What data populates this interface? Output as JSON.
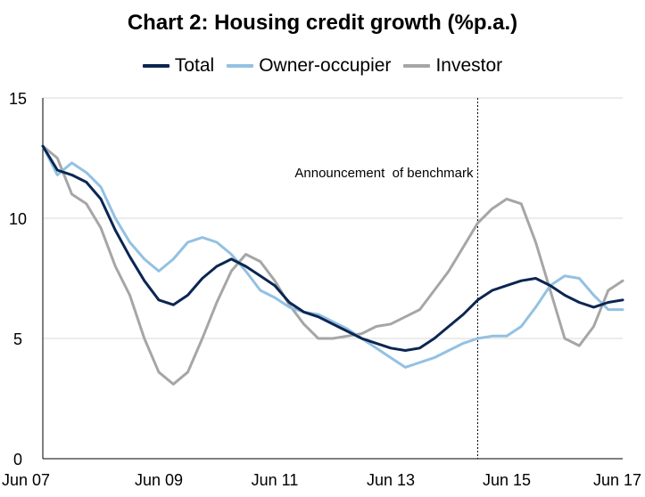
{
  "chart_data": {
    "type": "line",
    "title": "Chart 2: Housing credit growth (%p.a.)",
    "xlabel": "",
    "ylabel": "",
    "x_range": [
      "2007-06",
      "2017-06"
    ],
    "ylim": [
      0,
      15
    ],
    "y_ticks": [
      0,
      5,
      10,
      15
    ],
    "x_ticks": [
      {
        "date": "2007-06",
        "label": "Jun 07"
      },
      {
        "date": "2009-06",
        "label": "Jun 09"
      },
      {
        "date": "2011-06",
        "label": "Jun 11"
      },
      {
        "date": "2013-06",
        "label": "Jun 13"
      },
      {
        "date": "2015-06",
        "label": "Jun 15"
      },
      {
        "date": "2017-06",
        "label": "Jun 17"
      }
    ],
    "grid": "horizontal",
    "legend_position": "top-center",
    "annotation": {
      "date": "2014-12",
      "label": "Announcement  of benchmark",
      "style": "dotted-vertical-line"
    },
    "series": [
      {
        "name": "Total",
        "color": "#0b2653",
        "points": [
          [
            "2007-06",
            13.0
          ],
          [
            "2007-09",
            12.0
          ],
          [
            "2007-12",
            11.8
          ],
          [
            "2008-03",
            11.5
          ],
          [
            "2008-06",
            10.8
          ],
          [
            "2008-09",
            9.5
          ],
          [
            "2008-12",
            8.4
          ],
          [
            "2009-03",
            7.4
          ],
          [
            "2009-06",
            6.6
          ],
          [
            "2009-09",
            6.4
          ],
          [
            "2009-12",
            6.8
          ],
          [
            "2010-03",
            7.5
          ],
          [
            "2010-06",
            8.0
          ],
          [
            "2010-09",
            8.3
          ],
          [
            "2010-12",
            8.0
          ],
          [
            "2011-03",
            7.6
          ],
          [
            "2011-06",
            7.2
          ],
          [
            "2011-09",
            6.5
          ],
          [
            "2011-12",
            6.1
          ],
          [
            "2012-03",
            5.9
          ],
          [
            "2012-06",
            5.6
          ],
          [
            "2012-09",
            5.3
          ],
          [
            "2012-12",
            5.0
          ],
          [
            "2013-03",
            4.8
          ],
          [
            "2013-06",
            4.6
          ],
          [
            "2013-09",
            4.5
          ],
          [
            "2013-12",
            4.6
          ],
          [
            "2014-03",
            5.0
          ],
          [
            "2014-06",
            5.5
          ],
          [
            "2014-09",
            6.0
          ],
          [
            "2014-12",
            6.6
          ],
          [
            "2015-03",
            7.0
          ],
          [
            "2015-06",
            7.2
          ],
          [
            "2015-09",
            7.4
          ],
          [
            "2015-12",
            7.5
          ],
          [
            "2016-03",
            7.2
          ],
          [
            "2016-06",
            6.8
          ],
          [
            "2016-09",
            6.5
          ],
          [
            "2016-12",
            6.3
          ],
          [
            "2017-03",
            6.5
          ],
          [
            "2017-06",
            6.6
          ]
        ]
      },
      {
        "name": "Owner-occupier",
        "color": "#93c1e2",
        "points": [
          [
            "2007-06",
            13.0
          ],
          [
            "2007-09",
            11.8
          ],
          [
            "2007-12",
            12.3
          ],
          [
            "2008-03",
            11.9
          ],
          [
            "2008-06",
            11.3
          ],
          [
            "2008-09",
            10.0
          ],
          [
            "2008-12",
            9.0
          ],
          [
            "2009-03",
            8.3
          ],
          [
            "2009-06",
            7.8
          ],
          [
            "2009-09",
            8.3
          ],
          [
            "2009-12",
            9.0
          ],
          [
            "2010-03",
            9.2
          ],
          [
            "2010-06",
            9.0
          ],
          [
            "2010-09",
            8.5
          ],
          [
            "2010-12",
            7.8
          ],
          [
            "2011-03",
            7.0
          ],
          [
            "2011-06",
            6.7
          ],
          [
            "2011-09",
            6.3
          ],
          [
            "2011-12",
            6.1
          ],
          [
            "2012-03",
            6.0
          ],
          [
            "2012-06",
            5.7
          ],
          [
            "2012-09",
            5.4
          ],
          [
            "2012-12",
            5.0
          ],
          [
            "2013-03",
            4.6
          ],
          [
            "2013-06",
            4.2
          ],
          [
            "2013-09",
            3.8
          ],
          [
            "2013-12",
            4.0
          ],
          [
            "2014-03",
            4.2
          ],
          [
            "2014-06",
            4.5
          ],
          [
            "2014-09",
            4.8
          ],
          [
            "2014-12",
            5.0
          ],
          [
            "2015-03",
            5.1
          ],
          [
            "2015-06",
            5.1
          ],
          [
            "2015-09",
            5.5
          ],
          [
            "2015-12",
            6.3
          ],
          [
            "2016-03",
            7.2
          ],
          [
            "2016-06",
            7.6
          ],
          [
            "2016-09",
            7.5
          ],
          [
            "2016-12",
            6.8
          ],
          [
            "2017-03",
            6.2
          ],
          [
            "2017-06",
            6.2
          ]
        ]
      },
      {
        "name": "Investor",
        "color": "#a6a6a6",
        "points": [
          [
            "2007-06",
            13.0
          ],
          [
            "2007-09",
            12.5
          ],
          [
            "2007-12",
            11.0
          ],
          [
            "2008-03",
            10.6
          ],
          [
            "2008-06",
            9.6
          ],
          [
            "2008-09",
            8.0
          ],
          [
            "2008-12",
            6.8
          ],
          [
            "2009-03",
            5.0
          ],
          [
            "2009-06",
            3.6
          ],
          [
            "2009-09",
            3.1
          ],
          [
            "2009-12",
            3.6
          ],
          [
            "2010-03",
            5.0
          ],
          [
            "2010-06",
            6.5
          ],
          [
            "2010-09",
            7.8
          ],
          [
            "2010-12",
            8.5
          ],
          [
            "2011-03",
            8.2
          ],
          [
            "2011-06",
            7.4
          ],
          [
            "2011-09",
            6.4
          ],
          [
            "2011-12",
            5.6
          ],
          [
            "2012-03",
            5.0
          ],
          [
            "2012-06",
            5.0
          ],
          [
            "2012-09",
            5.1
          ],
          [
            "2012-12",
            5.2
          ],
          [
            "2013-03",
            5.5
          ],
          [
            "2013-06",
            5.6
          ],
          [
            "2013-09",
            5.9
          ],
          [
            "2013-12",
            6.2
          ],
          [
            "2014-03",
            7.0
          ],
          [
            "2014-06",
            7.8
          ],
          [
            "2014-09",
            8.8
          ],
          [
            "2014-12",
            9.8
          ],
          [
            "2015-03",
            10.4
          ],
          [
            "2015-06",
            10.8
          ],
          [
            "2015-09",
            10.6
          ],
          [
            "2015-12",
            9.0
          ],
          [
            "2016-03",
            7.0
          ],
          [
            "2016-06",
            5.0
          ],
          [
            "2016-09",
            4.7
          ],
          [
            "2016-12",
            5.5
          ],
          [
            "2017-03",
            7.0
          ],
          [
            "2017-06",
            7.4
          ]
        ]
      }
    ]
  }
}
